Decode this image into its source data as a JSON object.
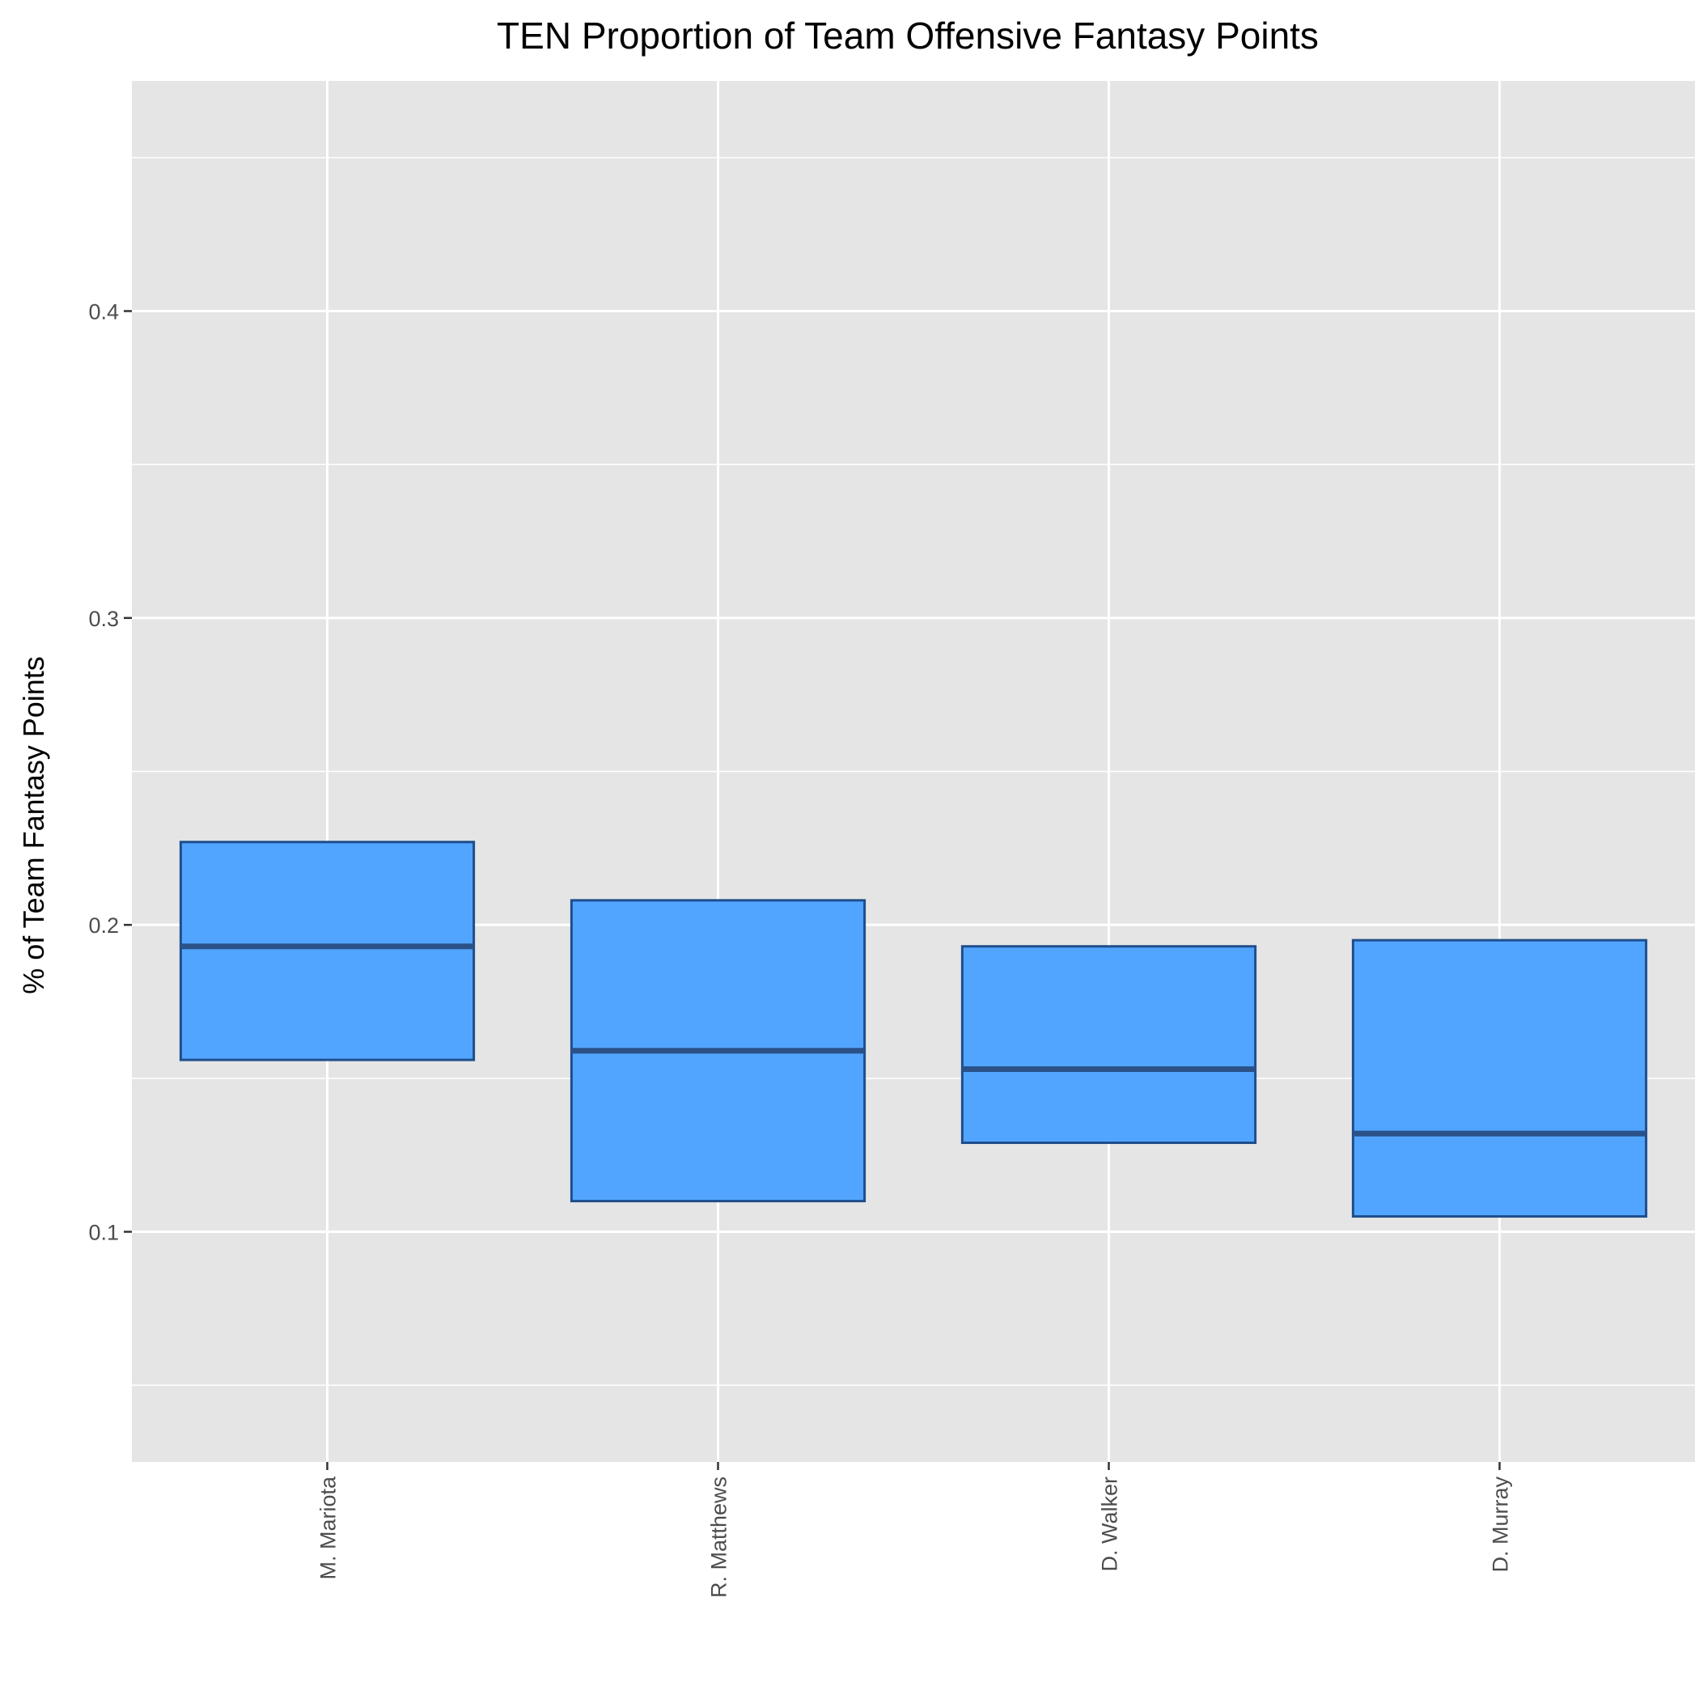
{
  "chart_data": {
    "type": "box",
    "title": "TEN Proportion of Team Offensive Fantasy Points",
    "xlabel": "",
    "ylabel": "% of Team Fantasy Points",
    "ylim": [
      0.025,
      0.475
    ],
    "yticks": [
      0.1,
      0.2,
      0.3,
      0.4
    ],
    "ytick_labels": [
      "0.1",
      "0.2",
      "0.3",
      "0.4"
    ],
    "grid": true,
    "legend": "none",
    "categories": [
      "M. Mariota",
      "R. Matthews",
      "D. Walker",
      "D. Murray"
    ],
    "boxes": [
      {
        "q1": 0.156,
        "median": 0.193,
        "q3": 0.227
      },
      {
        "q1": 0.11,
        "median": 0.159,
        "q3": 0.208
      },
      {
        "q1": 0.129,
        "median": 0.153,
        "q3": 0.193
      },
      {
        "q1": 0.105,
        "median": 0.132,
        "q3": 0.195
      }
    ],
    "colors": {
      "panel": "#e5e5e5",
      "box_fill": "#52a5ff",
      "box_outline": "#1f4e8c",
      "median": "#2a5289"
    }
  }
}
